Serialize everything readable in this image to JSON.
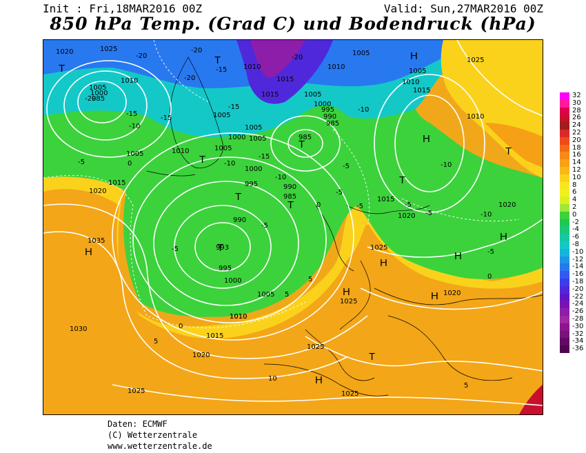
{
  "header": {
    "init": "Init : Fri,18MAR2016 00Z",
    "valid": "Valid: Sun,27MAR2016 00Z",
    "title": "850 hPa Temp. (Grad C) und Bodendruck (hPa)"
  },
  "footer": {
    "line1": "Daten: ECMWF",
    "line2": "(C) Wetterzentrale",
    "line3": "www.wetterzentrale.de"
  },
  "legend": {
    "labels": [
      "32",
      "30",
      "28",
      "26",
      "24",
      "22",
      "20",
      "18",
      "16",
      "14",
      "12",
      "10",
      "8",
      "6",
      "4",
      "2",
      "0",
      "-2",
      "-4",
      "-6",
      "-8",
      "-10",
      "-12",
      "-14",
      "-16",
      "-18",
      "-20",
      "-22",
      "-24",
      "-26",
      "-28",
      "-30",
      "-32",
      "-34",
      "-36"
    ],
    "colors": [
      "#ff00ff",
      "#ff1a99",
      "#e0004c",
      "#c8102e",
      "#a01e1e",
      "#d92a2a",
      "#f04a1a",
      "#f46a16",
      "#f68a14",
      "#f8a214",
      "#f8b818",
      "#fad21c",
      "#fae61e",
      "#f0f020",
      "#dcf020",
      "#a0e63c",
      "#3cd23c",
      "#20c850",
      "#1ac878",
      "#14c8a0",
      "#14c8c8",
      "#14b4dc",
      "#1e96e6",
      "#2878f0",
      "#325af0",
      "#3c3cf0",
      "#5028dc",
      "#6414c8",
      "#7814b4",
      "#8c1eaa",
      "#a028a0",
      "#8c148c",
      "#781478",
      "#640a64",
      "#500550"
    ]
  },
  "map": {
    "pressure_labels": [
      "1020",
      "1025",
      "1010",
      "1005",
      "1000",
      "995",
      "985",
      "1015",
      "1030",
      "1035",
      "990",
      "993"
    ],
    "temp_labels": [
      "-20",
      "-15",
      "-10",
      "-5",
      "0",
      "5",
      "10"
    ],
    "highs": [
      "H",
      "H",
      "H",
      "H",
      "H",
      "H",
      "H",
      "H",
      "H"
    ],
    "lows": [
      "T",
      "T",
      "T",
      "T",
      "T",
      "T",
      "T",
      "T",
      "T",
      "T"
    ]
  }
}
